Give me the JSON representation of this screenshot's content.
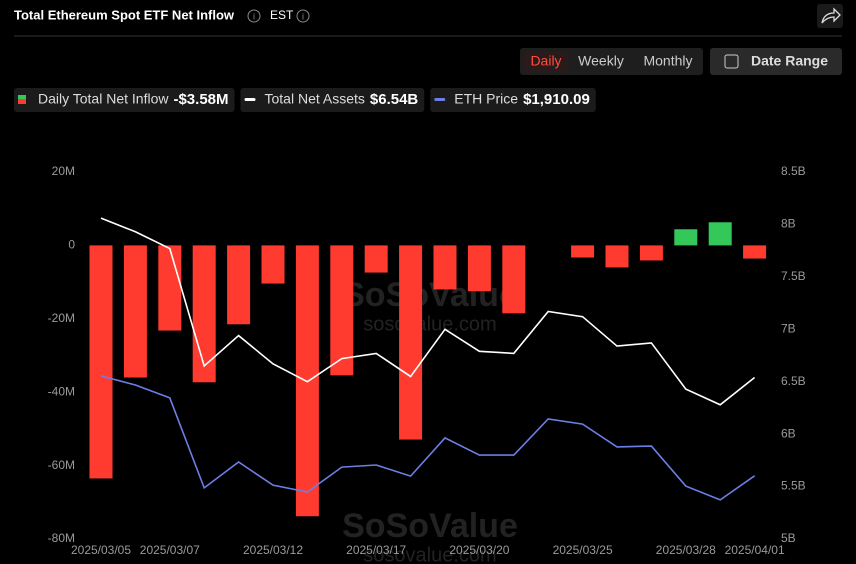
{
  "header": {
    "title": "Total Ethereum Spot ETF Net Inflow",
    "timezone": "EST"
  },
  "controls": {
    "periods": [
      "Daily",
      "Weekly",
      "Monthly"
    ],
    "date_range": "Date Range"
  },
  "watermark": [
    "SoSoValue",
    "sosovalue.com"
  ],
  "chart_data": {
    "type": "combo",
    "categories": [
      "2025/03/05",
      null,
      "2025/03/07",
      null,
      null,
      "2025/03/12",
      null,
      null,
      "2025/03/17",
      null,
      null,
      "2025/03/20",
      null,
      null,
      "2025/03/25",
      null,
      null,
      "2025/03/28",
      null,
      "2025/04/01"
    ],
    "ylim": [
      -80,
      20
    ],
    "yticks": [
      {
        "value": 20,
        "label": "20M"
      },
      0,
      {
        "value": -20,
        "label": "-20M"
      },
      {
        "value": -40,
        "label": "-40M"
      },
      {
        "value": -60,
        "label": "-60M"
      },
      {
        "value": -80,
        "label": "-80M"
      }
    ],
    "y2lim": [
      5,
      8.5
    ],
    "y2ticks": [
      {
        "value": 8.5,
        "label": "8.5B"
      },
      {
        "value": 8,
        "label": "8B"
      },
      {
        "value": 7.5,
        "label": "7.5B"
      },
      {
        "value": 7,
        "label": "7B"
      },
      {
        "value": 6.5,
        "label": "6.5B"
      },
      {
        "value": 6,
        "label": "6B"
      },
      {
        "value": 5.5,
        "label": "5.5B"
      },
      {
        "value": 5,
        "label": "5B"
      }
    ],
    "y3lim": [
      1700,
      2920
    ],
    "grid": false,
    "series": [
      {
        "name": "Daily Total Net Inflow",
        "type": "bar",
        "positive_color": "#34c759",
        "negative_color": "#ff3b30",
        "legend_value": "-$3.58M",
        "values": [
          -63.5,
          -36.0,
          -23.2,
          -37.3,
          -21.5,
          -10.4,
          -73.8,
          -35.4,
          -7.4,
          -52.9,
          -12.0,
          -12.5,
          -18.5,
          0,
          -3.3,
          -6.0,
          -4.1,
          4.4,
          6.3,
          -3.58
        ]
      },
      {
        "name": "Total Net Assets",
        "type": "line",
        "axis": "y2",
        "color": "#ffffff",
        "legend_value": "$6.54B",
        "values": [
          8.06,
          7.93,
          7.77,
          6.65,
          6.94,
          6.67,
          6.5,
          6.72,
          6.77,
          6.55,
          7.0,
          6.79,
          6.77,
          7.17,
          7.12,
          6.84,
          6.87,
          6.43,
          6.28,
          6.54
        ]
      },
      {
        "name": "ETH Price",
        "type": "line",
        "axis": "y3",
        "color": "#6b7fe6",
        "legend_value": "$1,910.09",
        "values": [
          2242,
          2212,
          2169,
          1870,
          1956,
          1879,
          1856,
          1939,
          1946,
          1909,
          2036,
          1979,
          1979,
          2099,
          2082,
          2006,
          2009,
          1876,
          1830,
          1910.09
        ]
      }
    ]
  }
}
